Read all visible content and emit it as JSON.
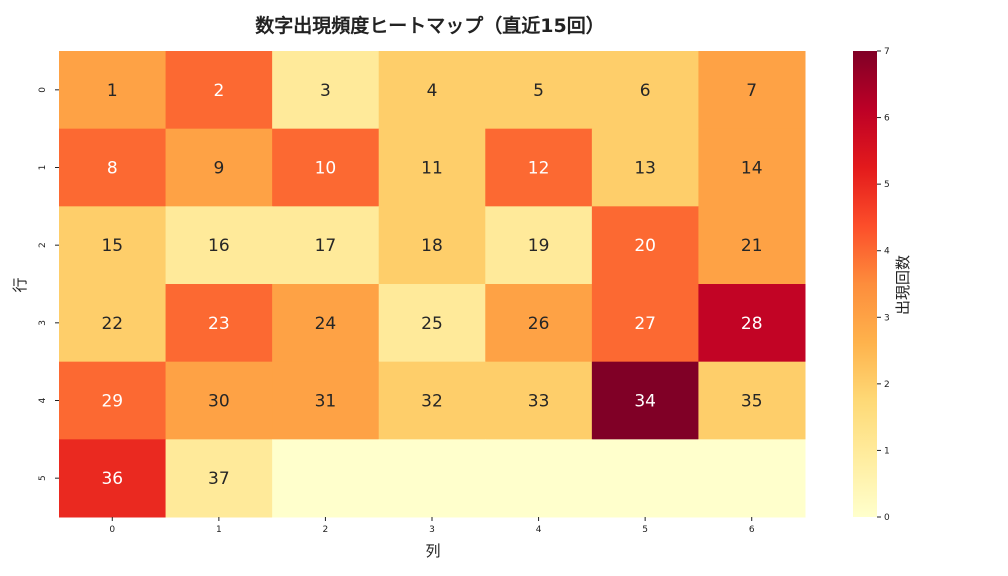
{
  "chart_data": {
    "type": "heatmap",
    "title": "数字出現頻度ヒートマップ（直近15回）",
    "xlabel": "列",
    "ylabel": "行",
    "colorbar_label": "出現回数",
    "colormap": "YlOrRd",
    "x_ticks": [
      "0",
      "1",
      "2",
      "3",
      "4",
      "5",
      "6"
    ],
    "y_ticks": [
      "0",
      "1",
      "2",
      "3",
      "4",
      "5"
    ],
    "colorbar_ticks": [
      "0",
      "1",
      "2",
      "3",
      "4",
      "5",
      "6",
      "7"
    ],
    "vmin": 0,
    "vmax": 7,
    "values": [
      [
        3,
        4,
        1,
        2,
        2,
        2,
        3
      ],
      [
        4,
        3,
        4,
        2,
        4,
        2,
        3
      ],
      [
        2,
        1,
        1,
        2,
        1,
        4,
        3
      ],
      [
        2,
        4,
        3,
        1,
        3,
        4,
        6
      ],
      [
        4,
        3,
        3,
        2,
        2,
        7,
        2
      ],
      [
        5,
        1,
        0,
        0,
        0,
        0,
        0
      ]
    ],
    "annotations": [
      [
        "1",
        "2",
        "3",
        "4",
        "5",
        "6",
        "7"
      ],
      [
        "8",
        "9",
        "10",
        "11",
        "12",
        "13",
        "14"
      ],
      [
        "15",
        "16",
        "17",
        "18",
        "19",
        "20",
        "21"
      ],
      [
        "22",
        "23",
        "24",
        "25",
        "26",
        "27",
        "28"
      ],
      [
        "29",
        "30",
        "31",
        "32",
        "33",
        "34",
        "35"
      ],
      [
        "36",
        "37",
        "",
        "",
        "",
        "",
        ""
      ]
    ]
  }
}
